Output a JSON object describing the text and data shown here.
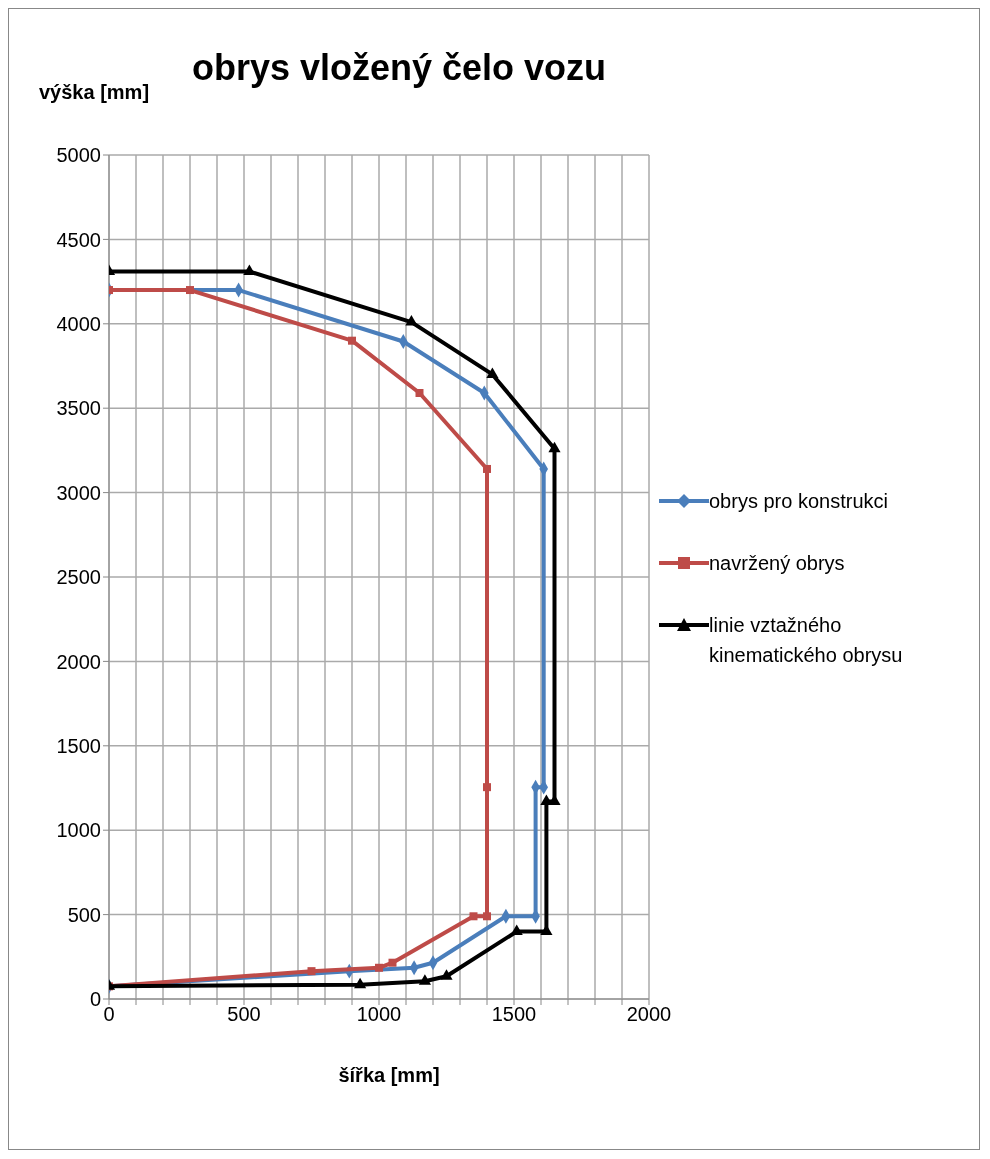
{
  "chart_data": {
    "type": "line",
    "title": "obrys vložený čelo vozu",
    "xlabel": "šířka [mm]",
    "ylabel": "výška [mm]",
    "xlim": [
      0,
      2000
    ],
    "ylim": [
      0,
      5000
    ],
    "xticks": [
      0,
      {
        "value": 100,
        "label": null
      },
      {
        "value": 200,
        "label": null
      },
      {
        "value": 300,
        "label": null
      },
      {
        "value": 400,
        "label": null
      },
      500,
      {
        "value": 600,
        "label": null
      },
      {
        "value": 700,
        "label": null
      },
      {
        "value": 800,
        "label": null
      },
      {
        "value": 900,
        "label": null
      },
      1000,
      {
        "value": 1100,
        "label": null
      },
      {
        "value": 1200,
        "label": null
      },
      {
        "value": 1300,
        "label": null
      },
      {
        "value": 1400,
        "label": null
      },
      1500,
      {
        "value": 1600,
        "label": null
      },
      {
        "value": 1700,
        "label": null
      },
      {
        "value": 1800,
        "label": null
      },
      {
        "value": 1900,
        "label": null
      },
      2000
    ],
    "yticks": [
      0,
      500,
      1000,
      1500,
      2000,
      2500,
      3000,
      3500,
      4000,
      4500,
      5000
    ],
    "grid": true,
    "legend": "right",
    "line_style": "solid",
    "series": [
      {
        "name": "obrys pro konstrukci",
        "color": "#4a7ebb",
        "marker": "diamond",
        "x": [
          0,
          890,
          1130,
          1200,
          1470,
          1580,
          1580,
          1610,
          1610,
          1390,
          1090,
          480,
          0
        ],
        "values": [
          75,
          165,
          185,
          215,
          490,
          490,
          1255,
          1255,
          3140,
          3590,
          3895,
          4200,
          4200
        ]
      },
      {
        "name": "navržený obrys",
        "color": "#be4b48",
        "marker": "square",
        "x": [
          0,
          750,
          1000,
          1050,
          1350,
          1400,
          1400,
          1400,
          1150,
          900,
          300,
          0
        ],
        "values": [
          75,
          165,
          185,
          215,
          490,
          490,
          1255,
          3140,
          3590,
          3900,
          4200,
          4200
        ]
      },
      {
        "name": "linie vztažného kinematického obrysu",
        "color": "#000000",
        "marker": "triangle",
        "x": [
          0,
          930,
          1170,
          1250,
          1510,
          1620,
          1620,
          1650,
          1650,
          1420,
          1120,
          520,
          0
        ],
        "values": [
          75,
          85,
          105,
          135,
          400,
          400,
          1170,
          1170,
          3260,
          3700,
          4010,
          4310,
          4310
        ]
      }
    ]
  }
}
